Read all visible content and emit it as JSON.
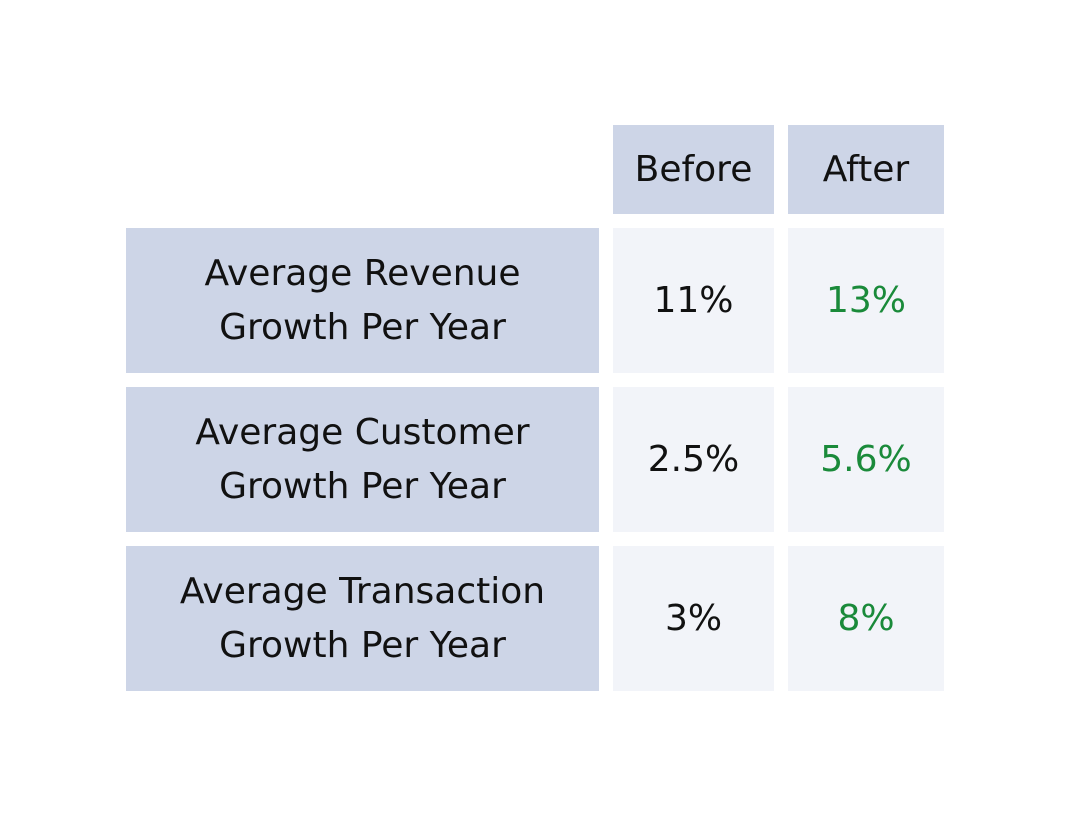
{
  "chart_data": {
    "type": "table",
    "columns": [
      "Before",
      "After"
    ],
    "rows": [
      {
        "label": "Average Revenue\nGrowth  Per Year",
        "before": "11%",
        "after": "13%"
      },
      {
        "label": "Average Customer\nGrowth  Per Year",
        "before": "2.5%",
        "after": "5.6%"
      },
      {
        "label": "Average Transaction\nGrowth Per Year",
        "before": "3%",
        "after": "8%"
      }
    ],
    "values": {
      "before": [
        11,
        2.5,
        3
      ],
      "after": [
        13,
        5.6,
        8
      ]
    }
  },
  "colors": {
    "header_bg": "#cdd5e7",
    "label_bg": "#cdd5e7",
    "value_bg": "#f2f4f9",
    "before_text": "#111111",
    "after_text": "#1a8a3a"
  }
}
